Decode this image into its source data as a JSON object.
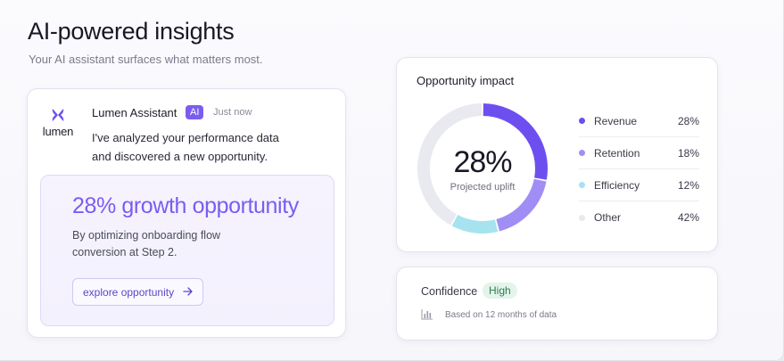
{
  "header": {
    "title": "AI-powered insights",
    "subtitle": "Your AI assistant surfaces what matters most."
  },
  "assistant": {
    "logo_text": "lumen",
    "name": "Lumen Assistant",
    "badge": "AI",
    "time": "Just now",
    "message_line1": "I've analyzed your performance data",
    "message_line2": "and discovered a new opportunity.",
    "insight": {
      "headline": "28% growth opportunity",
      "desc_line1": "By optimizing onboarding flow",
      "desc_line2": "conversion at Step 2.",
      "button_label": "explore opportunity",
      "button_icon": "arrow-right-icon"
    }
  },
  "impact": {
    "title": "Opportunity impact",
    "center_value": "28%",
    "center_label": "Projected uplift"
  },
  "chart_data": {
    "type": "pie",
    "categories": [
      "Revenue",
      "Retention",
      "Efficiency",
      "Other"
    ],
    "values": [
      28,
      18,
      12,
      42
    ],
    "labels": [
      "28%",
      "18%",
      "12%",
      "42%"
    ],
    "colors": [
      "#6d4ff0",
      "#a08ef5",
      "#a6e3ef",
      "#e9e9f0"
    ],
    "donut": true,
    "legend": "right"
  },
  "confidence": {
    "label": "Confidence",
    "level": "High",
    "note": "Based on 12 months of data",
    "icon": "bar-chart-icon"
  }
}
